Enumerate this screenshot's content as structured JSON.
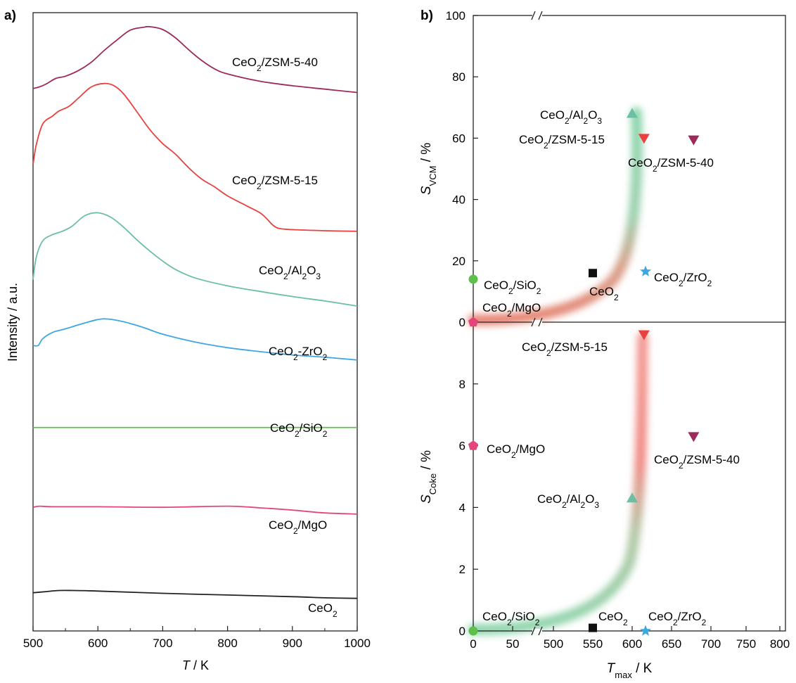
{
  "chart_data": [
    {
      "panel": "a)",
      "type": "line",
      "xlabel": "T / K",
      "ylabel": "Intensity / a.u.",
      "xlim": [
        500,
        1000
      ],
      "xticks": [
        "500",
        "600",
        "700",
        "800",
        "900",
        "1000"
      ],
      "series": [
        {
          "name": "CeO2/ZSM-5-40",
          "label": {
            "base": "CeO",
            "sub": "2",
            "rest": "/ZSM-5-40"
          },
          "color": "#9c2a5b",
          "x": [
            500,
            510,
            520,
            535,
            550,
            570,
            590,
            610,
            630,
            650,
            670,
            680,
            700,
            720,
            740,
            760,
            780,
            800,
            850,
            900,
            950,
            1000
          ],
          "y": [
            -3.5,
            -3.2,
            -2.7,
            -1.7,
            -1.3,
            -0.3,
            1.2,
            3.3,
            5.2,
            6.9,
            7.4,
            7.5,
            7.0,
            5.5,
            3.4,
            1.5,
            0.0,
            -0.9,
            -2.2,
            -3.0,
            -3.6,
            -4.2
          ]
        },
        {
          "name": "CeO2/ZSM-5-15",
          "label": {
            "base": "CeO",
            "sub": "2",
            "rest": "/ZSM-5-15"
          },
          "color": "#e8413f",
          "x": [
            500,
            505,
            515,
            530,
            540,
            555,
            570,
            590,
            610,
            625,
            640,
            660,
            680,
            700,
            720,
            740,
            760,
            780,
            800,
            830,
            850,
            860,
            870,
            880,
            900,
            950,
            1000
          ],
          "y": [
            -17,
            -13.5,
            -9.8,
            -8.4,
            -7.5,
            -6.7,
            -5.2,
            -3.2,
            -2.6,
            -3.0,
            -4.5,
            -7.6,
            -10.8,
            -13.3,
            -15.2,
            -17.6,
            -19.6,
            -21.0,
            -22.6,
            -24.4,
            -25.6,
            -26.6,
            -27.8,
            -28.4,
            -28.6,
            -28.8,
            -28.9
          ]
        },
        {
          "name": "CeO2/Al2O3",
          "label": {
            "base": "CeO",
            "sub": "2",
            "rest": "/Al",
            "sub2": "2",
            "rest2": "O",
            "sub3": "3"
          },
          "color": "#6bbfa2",
          "x": [
            500,
            505,
            515,
            530,
            545,
            560,
            580,
            600,
            620,
            640,
            660,
            680,
            700,
            720,
            750,
            800,
            850,
            900,
            950,
            1000
          ],
          "y": [
            -37.5,
            -33.5,
            -30.6,
            -29.5,
            -28.9,
            -28.0,
            -26.1,
            -25.6,
            -26.4,
            -28.2,
            -30.4,
            -32.4,
            -34.2,
            -35.7,
            -37.2,
            -38.6,
            -39.6,
            -40.5,
            -41.3,
            -42.2
          ]
        },
        {
          "name": "CeO2-ZrO2",
          "label": {
            "base": "CeO",
            "sub": "2",
            "rest": "-ZrO",
            "sub2": "2"
          },
          "color": "#3fa7e0",
          "x": [
            500,
            508,
            515,
            530,
            545,
            560,
            580,
            600,
            615,
            640,
            670,
            700,
            750,
            800,
            850,
            900,
            950,
            1000
          ],
          "y": [
            -49.2,
            -49.2,
            -48.0,
            -46.9,
            -46.4,
            -45.9,
            -45.2,
            -44.6,
            -44.5,
            -45.0,
            -46.0,
            -47.2,
            -48.6,
            -49.6,
            -50.3,
            -50.9,
            -51.3,
            -51.8
          ]
        },
        {
          "name": "CeO2/SiO2",
          "label": {
            "base": "CeO",
            "sub": "2",
            "rest": "/SiO",
            "sub2": "2"
          },
          "color": "#5ec04b",
          "x": [
            500,
            1000
          ],
          "y": [
            -63.8,
            -63.8
          ]
        },
        {
          "name": "CeO2/MgO",
          "label": {
            "base": "CeO",
            "sub": "2",
            "rest": "/MgO"
          },
          "color": "#e4467c",
          "x": [
            500,
            510,
            530,
            600,
            700,
            800,
            850,
            900,
            950,
            1000
          ],
          "y": [
            -78.0,
            -77.8,
            -77.9,
            -77.9,
            -78.0,
            -77.8,
            -78.1,
            -78.5,
            -79.0,
            -79.2
          ]
        },
        {
          "name": "CeO2",
          "label": {
            "base": "CeO",
            "sub": "2",
            "rest": ""
          },
          "color": "#222222",
          "x": [
            500,
            520,
            540,
            560,
            600,
            700,
            800,
            900,
            950,
            1000
          ],
          "y": [
            -93.2,
            -93.0,
            -92.8,
            -92.8,
            -92.9,
            -93.3,
            -93.6,
            -93.9,
            -94.1,
            -94.2
          ]
        }
      ]
    },
    {
      "panel": "b)",
      "type": "scatter",
      "xlabel": "T",
      "xlabel_sub": "max",
      "xlabel_unit": " / K",
      "xticks": [
        "0",
        "50",
        "500",
        "550",
        "600",
        "650",
        "700",
        "750",
        "800"
      ],
      "axis_break": [
        50,
        500
      ],
      "top": {
        "ylabel": "S",
        "ylabel_sub": "VCM",
        "ylabel_unit": " / %",
        "ylim": [
          0,
          100
        ],
        "yticks": [
          "0",
          "20",
          "40",
          "60",
          "80",
          "100"
        ],
        "points": [
          {
            "name": "CeO2/Al2O3",
            "label": {
              "base": "CeO",
              "sub": "2",
              "rest": "/Al",
              "sub2": "2",
              "rest2": "O",
              "sub3": "3"
            },
            "x": 600,
            "y": 68,
            "marker": "triangle-up",
            "color": "#6bbfa2"
          },
          {
            "name": "CeO2/ZSM-5-15",
            "label": {
              "base": "CeO",
              "sub": "2",
              "rest": "/ZSM-5-15"
            },
            "x": 615,
            "y": 60,
            "marker": "triangle-down",
            "color": "#e8413f"
          },
          {
            "name": "CeO2/ZSM-5-40",
            "label": {
              "base": "CeO",
              "sub": "2",
              "rest": "/ZSM-5-40"
            },
            "x": 678,
            "y": 59.5,
            "marker": "triangle-down",
            "color": "#9c2a5b"
          },
          {
            "name": "CeO2/ZrO2",
            "label": {
              "base": "CeO",
              "sub": "2",
              "rest": "/ZrO",
              "sub2": "2"
            },
            "x": 617,
            "y": 16.5,
            "marker": "star",
            "color": "#3fa7e0"
          },
          {
            "name": "CeO2",
            "label": {
              "base": "CeO",
              "sub": "2",
              "rest": ""
            },
            "x": 550,
            "y": 16,
            "marker": "square",
            "color": "#111111"
          },
          {
            "name": "CeO2/SiO2",
            "label": {
              "base": "CeO",
              "sub": "2",
              "rest": "/SiO",
              "sub2": "2"
            },
            "x": 0,
            "y": 14,
            "marker": "circle",
            "color": "#5ec04b"
          },
          {
            "name": "CeO2/MgO",
            "label": {
              "base": "CeO",
              "sub": "2",
              "rest": "/MgO"
            },
            "x": 0,
            "y": 0,
            "marker": "pentagon",
            "color": "#e4467c"
          }
        ]
      },
      "bottom": {
        "ylabel": "S",
        "ylabel_sub": "Coke",
        "ylabel_unit": " / %",
        "ylim": [
          0,
          10
        ],
        "yticks": [
          "0",
          "2",
          "4",
          "6",
          "8"
        ],
        "points": [
          {
            "name": "CeO2/ZSM-5-15",
            "label": {
              "base": "CeO",
              "sub": "2",
              "rest": "/ZSM-5-15"
            },
            "x": 615,
            "y": 9.6,
            "marker": "triangle-down",
            "color": "#e8413f"
          },
          {
            "name": "CeO2/ZSM-5-40",
            "label": {
              "base": "CeO",
              "sub": "2",
              "rest": "/ZSM-5-40"
            },
            "x": 678,
            "y": 6.3,
            "marker": "triangle-down",
            "color": "#9c2a5b"
          },
          {
            "name": "CeO2/MgO",
            "label": {
              "base": "CeO",
              "sub": "2",
              "rest": "/MgO"
            },
            "x": 0,
            "y": 6.0,
            "marker": "pentagon",
            "color": "#e4467c"
          },
          {
            "name": "CeO2/Al2O3",
            "label": {
              "base": "CeO",
              "sub": "2",
              "rest": "/Al",
              "sub2": "2",
              "rest2": "O",
              "sub3": "3"
            },
            "x": 600,
            "y": 4.3,
            "marker": "triangle-up",
            "color": "#6bbfa2"
          },
          {
            "name": "CeO2/SiO2",
            "label": {
              "base": "CeO",
              "sub": "2",
              "rest": "/SiO",
              "sub2": "2"
            },
            "x": 0,
            "y": 0,
            "marker": "circle",
            "color": "#5ec04b"
          },
          {
            "name": "CeO2",
            "label": {
              "base": "CeO",
              "sub": "2",
              "rest": ""
            },
            "x": 550,
            "y": 0.1,
            "marker": "square",
            "color": "#111111"
          },
          {
            "name": "CeO2/ZrO2",
            "label": {
              "base": "CeO",
              "sub": "2",
              "rest": "/ZrO",
              "sub2": "2"
            },
            "x": 617,
            "y": 0,
            "marker": "star",
            "color": "#3fa7e0"
          }
        ]
      }
    }
  ]
}
